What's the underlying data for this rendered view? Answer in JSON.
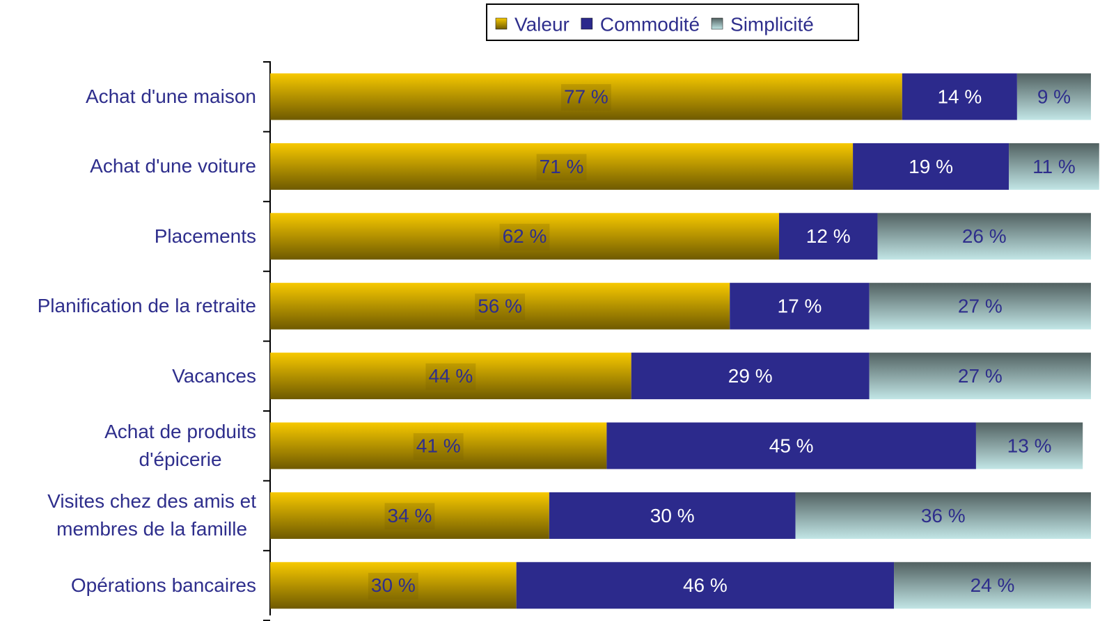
{
  "chart_data": {
    "type": "stacked_barh",
    "categories": [
      "Achat d'une maison",
      "Achat d'une voiture",
      "Placements",
      "Planification de la retraite",
      "Vacances",
      "Achat de produits\nd'épicerie",
      "Visites chez des amis et\nmembres de la famille",
      "Opérations bancaires"
    ],
    "series": [
      {
        "name": "Valeur",
        "color": "#f7c900",
        "values": [
          77,
          71,
          62,
          56,
          44,
          41,
          34,
          30
        ],
        "value_labels": [
          "77 %",
          "71 %",
          "62 %",
          "56 %",
          "44 %",
          "41 %",
          "34 %",
          "30 %"
        ]
      },
      {
        "name": "Commodité",
        "color": "#2c2a8c",
        "values": [
          14,
          19,
          12,
          17,
          29,
          45,
          30,
          46
        ],
        "value_labels": [
          "14 %",
          "19 %",
          "12 %",
          "17 %",
          "29 %",
          "45 %",
          "30 %",
          "46 %"
        ]
      },
      {
        "name": "Simplicité",
        "color": "#c2e6e6",
        "values": [
          9,
          11,
          26,
          27,
          27,
          13,
          36,
          24
        ],
        "value_labels": [
          "9 %",
          "11 %",
          "26 %",
          "27 %",
          "27 %",
          "13 %",
          "36 %",
          "24 %"
        ]
      }
    ],
    "xlim": [
      0,
      100
    ],
    "legend": "top"
  }
}
